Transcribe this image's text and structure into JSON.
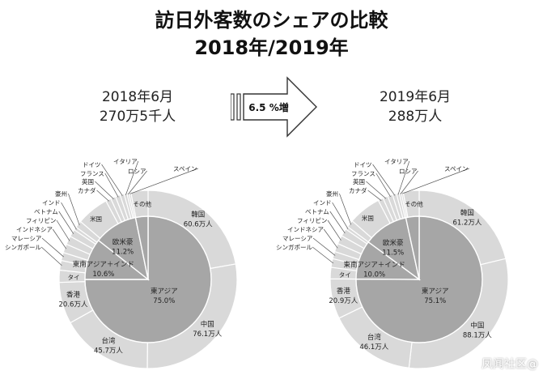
{
  "title_line1": "訪日外客数のシェアの比較",
  "title_line2": "2018年/2019年",
  "arrow_label": "6.5 %増",
  "watermark": "凤闻社区@",
  "colors": {
    "outer": "#d9d9d9",
    "inner": "#a6a6a6",
    "stroke": "#ffffff",
    "leader": "#555555"
  },
  "chart_data": [
    {
      "type": "pie",
      "period": "2018年6月",
      "total": "270万5千人",
      "inner_ring": [
        {
          "label": "東アジア",
          "value_text": "75.0%",
          "value": 75.0
        },
        {
          "label": "東南アジア＋インド",
          "value_text": "10.6%",
          "value": 10.6
        },
        {
          "label": "欧米豪",
          "value_text": "11.2%",
          "value": 11.2
        },
        {
          "label": "その他",
          "value_text": "",
          "value": 3.2
        }
      ],
      "outer_ring": [
        {
          "label": "韓国",
          "value_text": "60.6万人",
          "value": 60.6
        },
        {
          "label": "中国",
          "value_text": "76.1万人",
          "value": 76.1
        },
        {
          "label": "台湾",
          "value_text": "45.7万人",
          "value": 45.7
        },
        {
          "label": "香港",
          "value_text": "20.6万人",
          "value": 20.6
        },
        {
          "label": "タイ",
          "value_text": "",
          "value": 6.0
        },
        {
          "label": "シンガポール",
          "value_text": "",
          "value": 4.8
        },
        {
          "label": "マレーシア",
          "value_text": "",
          "value": 4.0
        },
        {
          "label": "インドネシア",
          "value_text": "",
          "value": 4.3
        },
        {
          "label": "フィリピン",
          "value_text": "",
          "value": 4.3
        },
        {
          "label": "ベトナム",
          "value_text": "",
          "value": 3.7
        },
        {
          "label": "インド",
          "value_text": "",
          "value": 1.6
        },
        {
          "label": "豪州",
          "value_text": "",
          "value": 3.5
        },
        {
          "label": "米国",
          "value_text": "",
          "value": 16.0
        },
        {
          "label": "カナダ",
          "value_text": "",
          "value": 2.6
        },
        {
          "label": "英国",
          "value_text": "",
          "value": 2.5
        },
        {
          "label": "フランス",
          "value_text": "",
          "value": 2.4
        },
        {
          "label": "ドイツ",
          "value_text": "",
          "value": 2.0
        },
        {
          "label": "イタリア",
          "value_text": "",
          "value": 1.4
        },
        {
          "label": "ロシア",
          "value_text": "",
          "value": 1.0
        },
        {
          "label": "スペイン",
          "value_text": "",
          "value": 1.0
        },
        {
          "label": "その他",
          "value_text": "",
          "value": 8.5
        }
      ]
    },
    {
      "type": "pie",
      "period": "2019年6月",
      "total": "288万人",
      "inner_ring": [
        {
          "label": "東アジア",
          "value_text": "75.1%",
          "value": 75.1
        },
        {
          "label": "東南アジア＋インド",
          "value_text": "10.0%",
          "value": 10.0
        },
        {
          "label": "欧米豪",
          "value_text": "11.5%",
          "value": 11.5
        },
        {
          "label": "その他",
          "value_text": "",
          "value": 3.4
        }
      ],
      "outer_ring": [
        {
          "label": "韓国",
          "value_text": "61.2万人",
          "value": 61.2
        },
        {
          "label": "中国",
          "value_text": "88.1万人",
          "value": 88.1
        },
        {
          "label": "台湾",
          "value_text": "46.1万人",
          "value": 46.1
        },
        {
          "label": "香港",
          "value_text": "20.9万人",
          "value": 20.9
        },
        {
          "label": "タイ",
          "value_text": "",
          "value": 6.0
        },
        {
          "label": "シンガポール",
          "value_text": "",
          "value": 4.5
        },
        {
          "label": "マレーシア",
          "value_text": "",
          "value": 3.8
        },
        {
          "label": "インドネシア",
          "value_text": "",
          "value": 4.4
        },
        {
          "label": "フィリピン",
          "value_text": "",
          "value": 4.5
        },
        {
          "label": "ベトナム",
          "value_text": "",
          "value": 4.0
        },
        {
          "label": "インド",
          "value_text": "",
          "value": 1.6
        },
        {
          "label": "豪州",
          "value_text": "",
          "value": 3.8
        },
        {
          "label": "米国",
          "value_text": "",
          "value": 17.2
        },
        {
          "label": "カナダ",
          "value_text": "",
          "value": 2.7
        },
        {
          "label": "英国",
          "value_text": "",
          "value": 2.6
        },
        {
          "label": "フランス",
          "value_text": "",
          "value": 2.6
        },
        {
          "label": "ドイツ",
          "value_text": "",
          "value": 2.1
        },
        {
          "label": "イタリア",
          "value_text": "",
          "value": 1.5
        },
        {
          "label": "ロシア",
          "value_text": "",
          "value": 1.1
        },
        {
          "label": "スペイン",
          "value_text": "",
          "value": 1.0
        },
        {
          "label": "その他",
          "value_text": "",
          "value": 8.3
        }
      ]
    }
  ]
}
